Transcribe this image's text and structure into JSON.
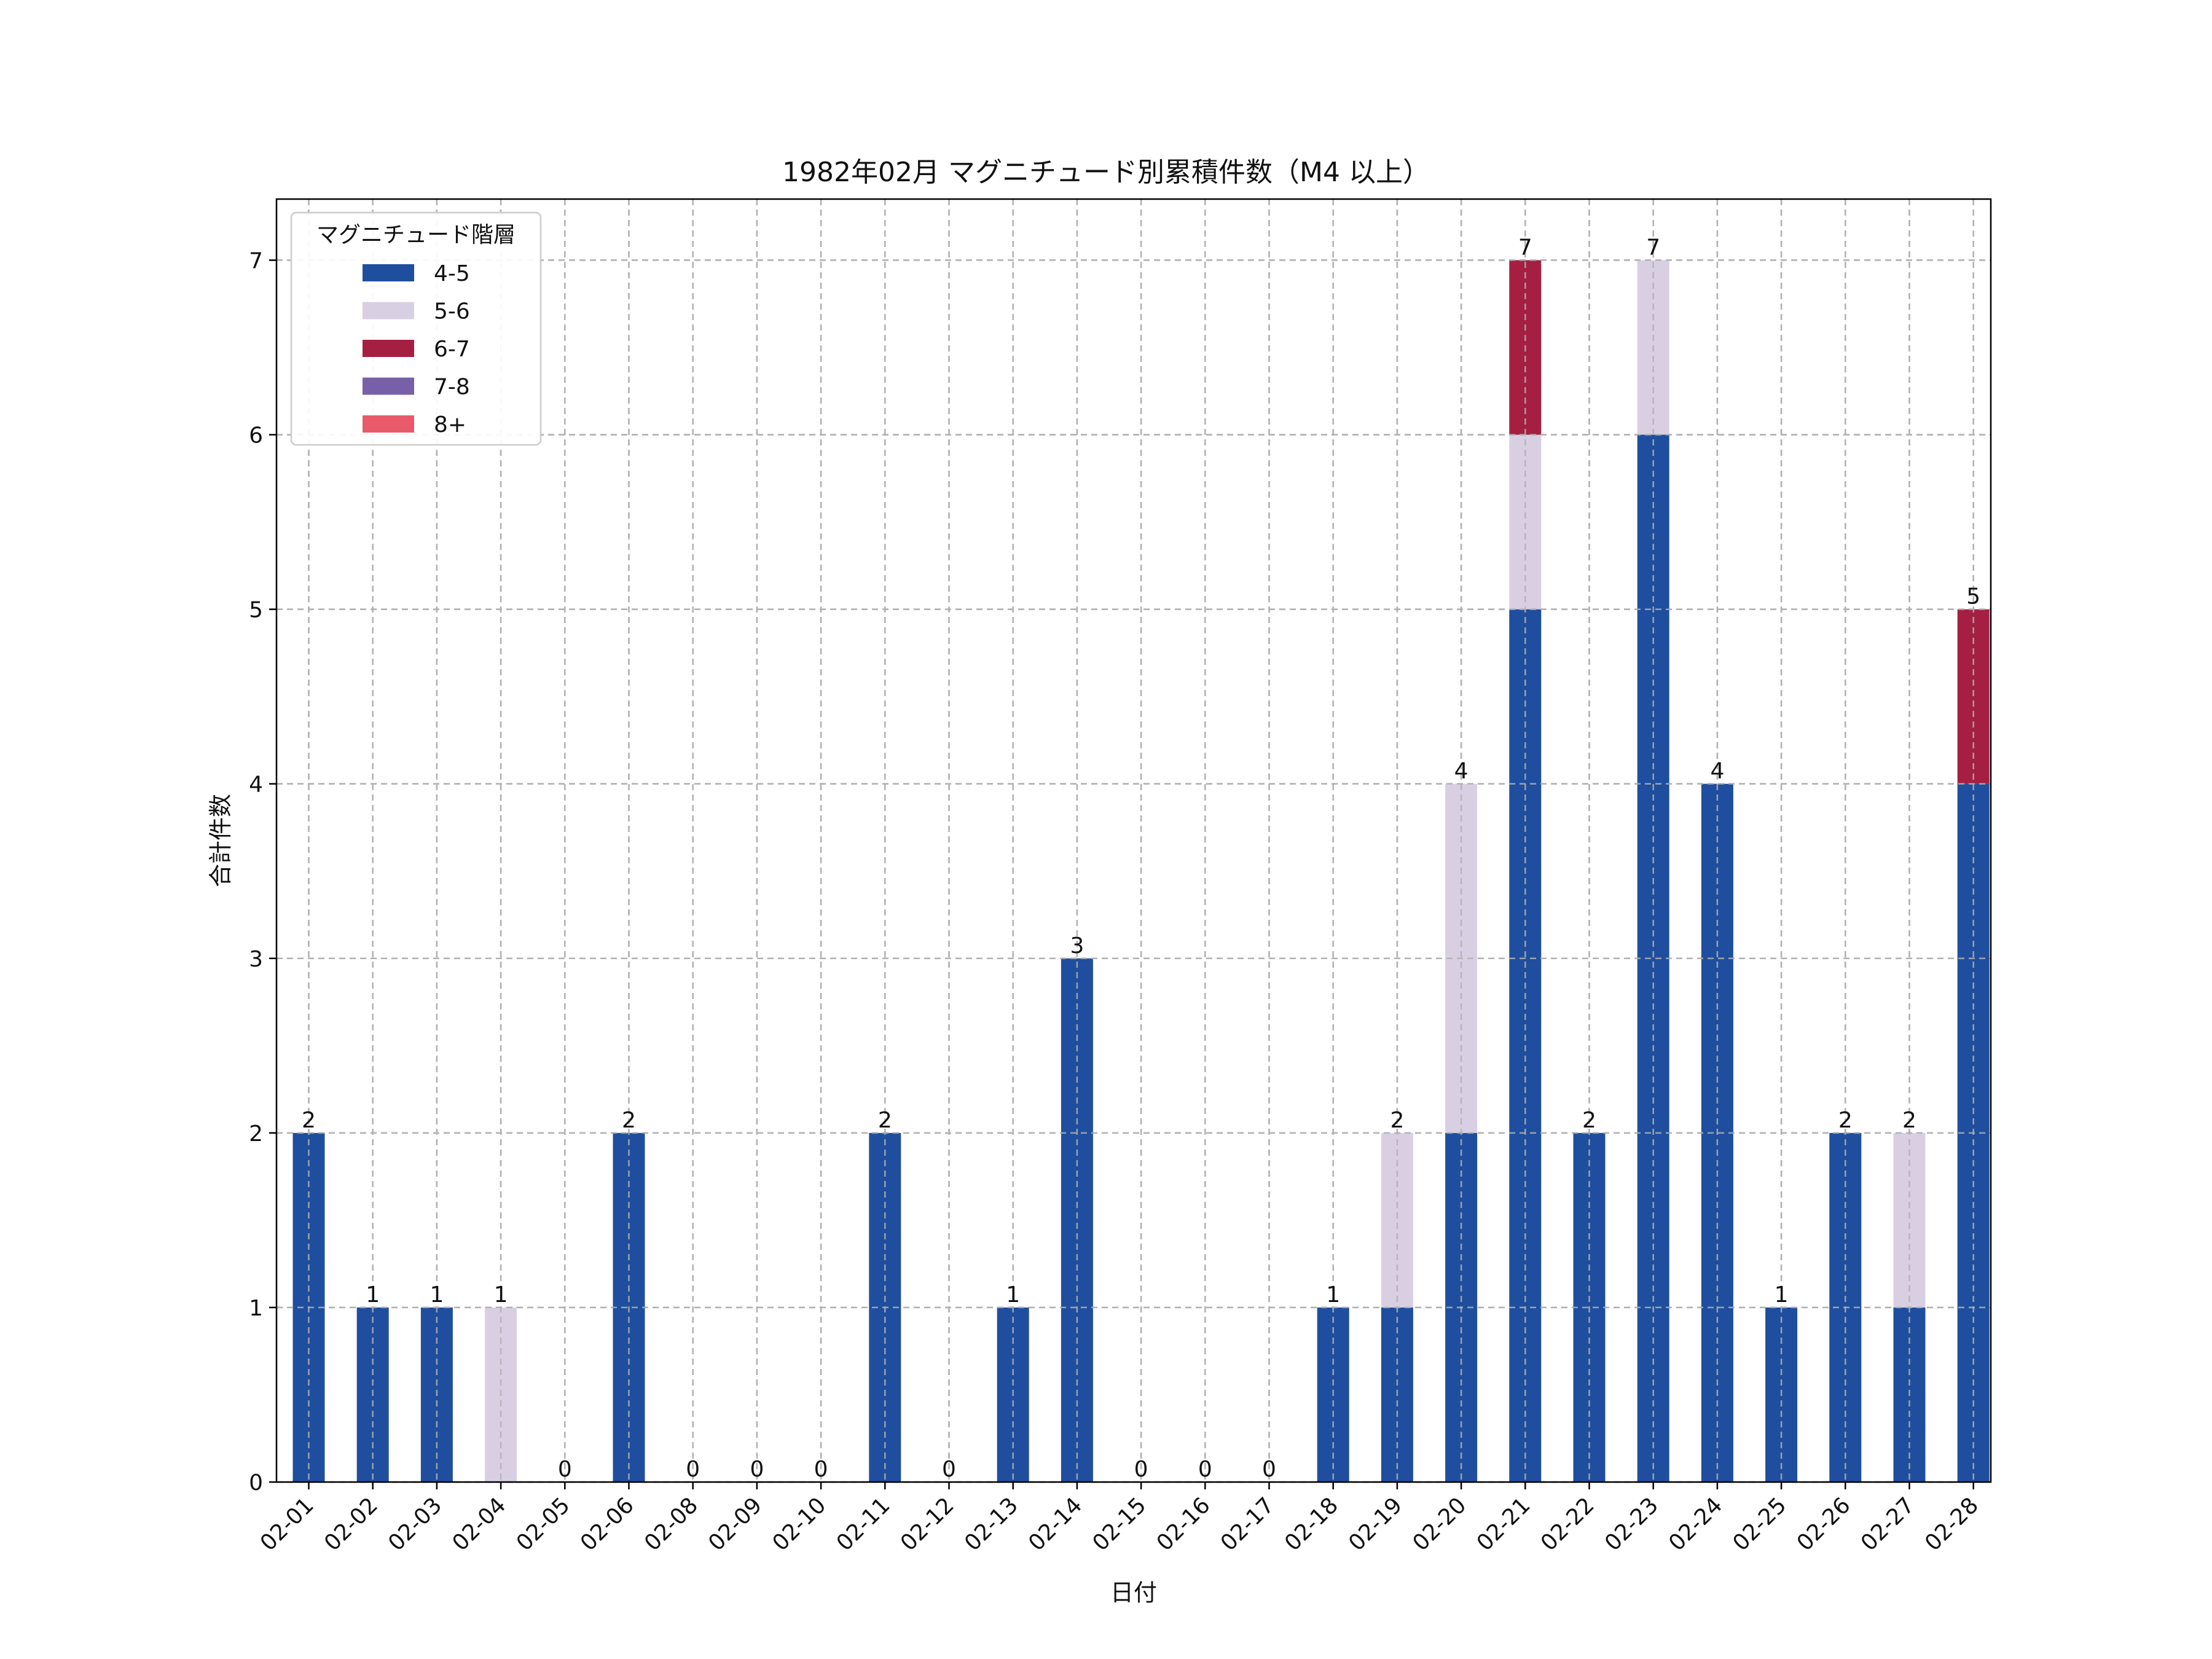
{
  "chart_data": {
    "type": "bar",
    "stacked": true,
    "title": "1982年02月 マグニチュード別累積件数（M4 以上）",
    "xlabel": "日付",
    "ylabel": "合計件数",
    "ylim": [
      0,
      7.35
    ],
    "yticks": [
      0,
      1,
      2,
      3,
      4,
      5,
      6,
      7
    ],
    "grid": true,
    "legend": {
      "title": "マグニチュード階層",
      "placement": "top-left"
    },
    "categories": [
      "02-01",
      "02-02",
      "02-03",
      "02-04",
      "02-05",
      "02-06",
      "02-08",
      "02-09",
      "02-10",
      "02-11",
      "02-12",
      "02-13",
      "02-14",
      "02-15",
      "02-16",
      "02-17",
      "02-18",
      "02-19",
      "02-20",
      "02-21",
      "02-22",
      "02-23",
      "02-24",
      "02-25",
      "02-26",
      "02-27",
      "02-28"
    ],
    "series": [
      {
        "name": "4-5",
        "color": "#1f4e9e",
        "values": [
          2,
          1,
          1,
          0,
          0,
          2,
          0,
          0,
          0,
          2,
          0,
          1,
          3,
          0,
          0,
          0,
          1,
          1,
          2,
          5,
          2,
          6,
          4,
          1,
          2,
          1,
          4
        ]
      },
      {
        "name": "5-6",
        "color": "#d9cfe3",
        "values": [
          0,
          0,
          0,
          1,
          0,
          0,
          0,
          0,
          0,
          0,
          0,
          0,
          0,
          0,
          0,
          0,
          0,
          1,
          2,
          1,
          0,
          1,
          0,
          0,
          0,
          1,
          0
        ]
      },
      {
        "name": "6-7",
        "color": "#a51f43",
        "values": [
          0,
          0,
          0,
          0,
          0,
          0,
          0,
          0,
          0,
          0,
          0,
          0,
          0,
          0,
          0,
          0,
          0,
          0,
          0,
          1,
          0,
          0,
          0,
          0,
          0,
          0,
          1
        ]
      },
      {
        "name": "7-8",
        "color": "#7760a8",
        "values": [
          0,
          0,
          0,
          0,
          0,
          0,
          0,
          0,
          0,
          0,
          0,
          0,
          0,
          0,
          0,
          0,
          0,
          0,
          0,
          0,
          0,
          0,
          0,
          0,
          0,
          0,
          0
        ]
      },
      {
        "name": "8+",
        "color": "#e85a6a",
        "values": [
          0,
          0,
          0,
          0,
          0,
          0,
          0,
          0,
          0,
          0,
          0,
          0,
          0,
          0,
          0,
          0,
          0,
          0,
          0,
          0,
          0,
          0,
          0,
          0,
          0,
          0,
          0
        ]
      }
    ],
    "totals": [
      2,
      1,
      1,
      1,
      0,
      2,
      0,
      0,
      0,
      2,
      0,
      1,
      3,
      0,
      0,
      0,
      1,
      2,
      4,
      7,
      2,
      7,
      4,
      1,
      2,
      2,
      5
    ]
  }
}
